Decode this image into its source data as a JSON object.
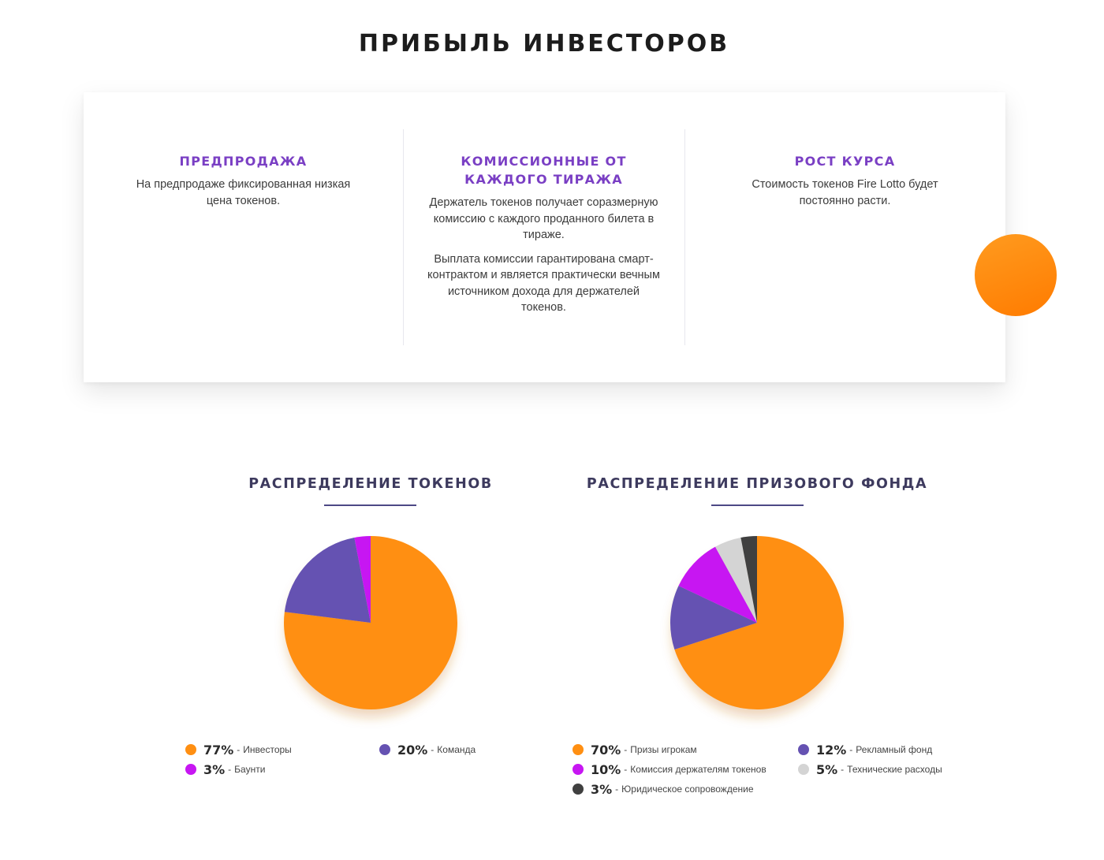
{
  "page_title": "ПРИБЫЛЬ ИНВЕСТОРОВ",
  "features": [
    {
      "title": "ПРЕДПРОДАЖА",
      "paragraphs": [
        "На предпродаже фиксированная низкая цена токенов."
      ]
    },
    {
      "title": "КОМИССИОННЫЕ ОТ КАЖДОГО ТИРАЖА",
      "paragraphs": [
        "Держатель токенов получает соразмерную комиссию с каждого проданного билета в тираже.",
        "Выплата комиссии гарантирована смарт-контрактом и является практически вечным источником дохода для держателей токенов."
      ]
    },
    {
      "title": "РОСТ КУРСА",
      "paragraphs": [
        "Стоимость токенов Fire Lotto будет постоянно расти."
      ]
    }
  ],
  "colors": {
    "title_purple": "#7a3fc4",
    "section_title": "#3d3a5e",
    "orange": "#ff8f12",
    "indigo": "#6552b2",
    "magenta": "#c716f2",
    "light_gray": "#d4d4d4",
    "dark_gray": "#404040"
  },
  "chart_data": [
    {
      "type": "pie",
      "title": "РАСПРЕДЕЛЕНИЕ ТОКЕНОВ",
      "slices": [
        {
          "label": "Инвесторы",
          "value": 77,
          "pct_text": "77%",
          "color": "#ff8f12"
        },
        {
          "label": "Команда",
          "value": 20,
          "pct_text": "20%",
          "color": "#6552b2"
        },
        {
          "label": "Баунти",
          "value": 3,
          "pct_text": "3%",
          "color": "#c716f2"
        }
      ]
    },
    {
      "type": "pie",
      "title": "РАСПРЕДЕЛЕНИЕ ПРИЗОВОГО ФОНДА",
      "slices": [
        {
          "label": "Призы игрокам",
          "value": 70,
          "pct_text": "70%",
          "color": "#ff8f12"
        },
        {
          "label": "Рекламный фонд",
          "value": 12,
          "pct_text": "12%",
          "color": "#6552b2"
        },
        {
          "label": "Комиссия держателям токенов",
          "value": 10,
          "pct_text": "10%",
          "color": "#c716f2"
        },
        {
          "label": "Технические расходы",
          "value": 5,
          "pct_text": "5%",
          "color": "#d4d4d4"
        },
        {
          "label": "Юридическое сопровождение",
          "value": 3,
          "pct_text": "3%",
          "color": "#404040"
        }
      ]
    }
  ]
}
